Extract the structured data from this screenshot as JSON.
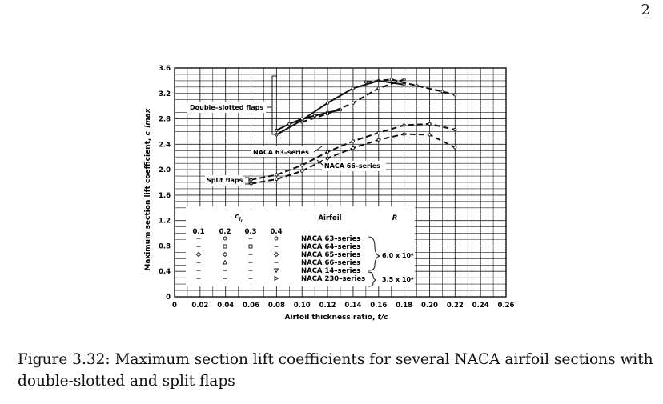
{
  "page": {
    "number": "2"
  },
  "caption": {
    "text": "Figure 3.32: Maximum section lift coefficients for several NACA airfoil sections with double-slotted and split flaps"
  },
  "chart_data": {
    "type": "line",
    "xlabel": "Airfoil thickness ratio,",
    "xlabel_symbol": "t/c",
    "ylabel": "Maximum section lift coefficient,",
    "ylabel_symbol": "c_lmax",
    "xlim": [
      0,
      0.26
    ],
    "ylim": [
      0,
      3.6
    ],
    "x_ticks": [
      "0",
      "0.02",
      "0.04",
      "0.06",
      "0.08",
      "0.10",
      "0.12",
      "0.14",
      "0.16",
      "0.18",
      "0.20",
      "0.22",
      "0.24",
      "0.26"
    ],
    "x_tick_values": [
      0,
      0.02,
      0.04,
      0.06,
      0.08,
      0.1,
      0.12,
      0.14,
      0.16,
      0.18,
      0.2,
      0.22,
      0.24,
      0.26
    ],
    "y_ticks": [
      "0",
      "0.4",
      "0.8",
      "1.2",
      "1.6",
      "2.0",
      "2.4",
      "2.8",
      "3.2",
      "3.6"
    ],
    "y_tick_values": [
      0,
      0.4,
      0.8,
      1.2,
      1.6,
      2.0,
      2.4,
      2.8,
      3.2,
      3.6
    ],
    "grid": true,
    "annotations": {
      "double_slotted": "Double–slotted flaps",
      "split": "Split flaps",
      "naca63": "NACA 63–series",
      "naca66": "NACA 66–series"
    },
    "series": [
      {
        "style": "solid",
        "x": [
          0.08,
          0.1,
          0.12,
          0.14,
          0.16,
          0.18
        ],
        "y": [
          2.55,
          2.78,
          3.05,
          3.28,
          3.4,
          3.34
        ]
      },
      {
        "style": "dashed",
        "x": [
          0.15,
          0.17,
          0.19,
          0.21,
          0.22
        ],
        "y": [
          3.38,
          3.42,
          3.32,
          3.23,
          3.18
        ]
      },
      {
        "style": "solid",
        "x": [
          0.08,
          0.09,
          0.1,
          0.11,
          0.12,
          0.13
        ],
        "y": [
          2.62,
          2.72,
          2.8,
          2.85,
          2.9,
          2.94
        ]
      },
      {
        "style": "dashed",
        "x": [
          0.1,
          0.12,
          0.14,
          0.16,
          0.18
        ],
        "y": [
          2.75,
          2.88,
          3.05,
          3.28,
          3.42
        ]
      },
      {
        "style": "dashed",
        "x": [
          0.06,
          0.08,
          0.1,
          0.12,
          0.14,
          0.16,
          0.18,
          0.2,
          0.22
        ],
        "y": [
          1.84,
          1.92,
          2.07,
          2.28,
          2.45,
          2.58,
          2.7,
          2.72,
          2.63
        ]
      },
      {
        "style": "dashed",
        "x": [
          0.06,
          0.08,
          0.1,
          0.12,
          0.14,
          0.16,
          0.18,
          0.2,
          0.22
        ],
        "y": [
          1.78,
          1.85,
          1.98,
          2.18,
          2.34,
          2.47,
          2.56,
          2.55,
          2.35
        ]
      }
    ],
    "legend": {
      "cli_header": "c",
      "cli_sub": "l",
      "cli_sub2": "i",
      "cli_values": [
        "0.1",
        "0.2",
        "0.3",
        "0.4"
      ],
      "airfoil_header": "Airfoil",
      "r_header": "R",
      "airfoils": [
        "NACA 63–series",
        "NACA 64–series",
        "NACA 65–series",
        "NACA 66–series",
        "NACA 14–series",
        "NACA 230–series"
      ],
      "r_values": [
        "6.0 x 10⁶",
        "3.5 x 10⁶"
      ],
      "symbol_names": [
        "circle",
        "square",
        "diamond",
        "triangle",
        "triangle-down",
        "triangle-right"
      ]
    }
  }
}
